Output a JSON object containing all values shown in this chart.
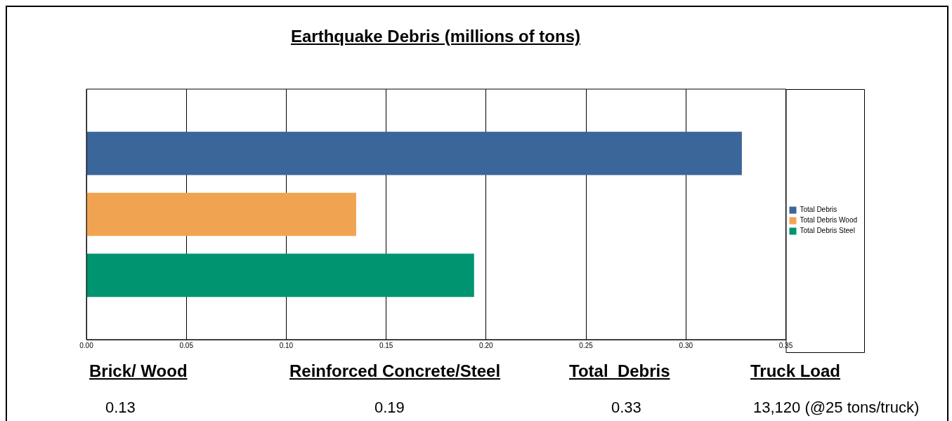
{
  "chart_data": {
    "type": "bar",
    "orientation": "horizontal",
    "title": "Earthquake Debris (millions of tons)",
    "categories": [
      null
    ],
    "series": [
      {
        "name": "Total Debris",
        "color": "#3b6699",
        "values": [
          0.328
        ]
      },
      {
        "name": "Total Debris Wood",
        "color": "#f0a452",
        "values": [
          0.135
        ]
      },
      {
        "name": "Total Debris Steel",
        "color": "#009470",
        "values": [
          0.194
        ]
      }
    ],
    "xlim": [
      0,
      0.35
    ],
    "xticks": [
      {
        "value": 0,
        "label": "0.00"
      },
      {
        "value": 0.05,
        "label": "0.05"
      },
      {
        "value": 0.1,
        "label": "0.10"
      },
      {
        "value": 0.15,
        "label": "0.15"
      },
      {
        "value": 0.2,
        "label": "0.20"
      },
      {
        "value": 0.25,
        "label": "0.25"
      },
      {
        "value": 0.3,
        "label": "0.30"
      },
      {
        "value": 0.35,
        "label": "0.35"
      }
    ],
    "grid": "x",
    "legend": "right",
    "tick_labels": "x",
    "annotations": [
      "Brick/ Wood",
      "Reinforced Concrete/Steel",
      "Total  Debris",
      "Truck Load",
      "0.13",
      "0.19",
      "0.33",
      "13,120 (@25 tons/truck)"
    ]
  }
}
